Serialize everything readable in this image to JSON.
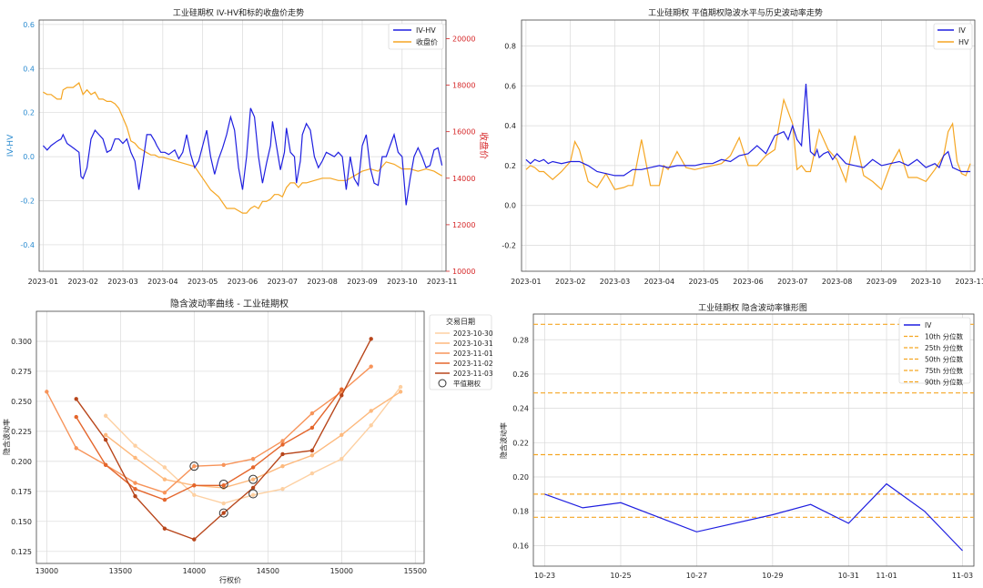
{
  "chart_data": [
    {
      "id": "c1",
      "type": "line",
      "title": "工业硅期权 IV-HV和标的收盘价走势",
      "xlabel": "",
      "ylabel": "IV-HV",
      "y2label": "收盘价",
      "legend_position": "top-right",
      "xticks": [
        "2023-01",
        "2023-02",
        "2023-03",
        "2023-04",
        "2023-05",
        "2023-06",
        "2023-07",
        "2023-08",
        "2023-09",
        "2023-10",
        "2023-11"
      ],
      "xlim": [
        -0.1,
        10.1
      ],
      "ylim": [
        -0.52,
        0.62
      ],
      "yticks": [
        -0.4,
        -0.2,
        0.0,
        0.2,
        0.4,
        0.6
      ],
      "y2lim": [
        10000,
        20800
      ],
      "y2ticks": [
        10000,
        12000,
        14000,
        16000,
        18000,
        20000
      ],
      "colors": {
        "iv_hv": "#1f1fe0",
        "close": "#f5a623",
        "left_axis": "#2a8bd0",
        "right_axis": "#d62728"
      },
      "series": [
        {
          "name": "IV-HV",
          "axis": "left",
          "x": [
            0.0,
            0.1,
            0.2,
            0.35,
            0.45,
            0.5,
            0.6,
            0.75,
            0.9,
            0.95,
            1.0,
            1.1,
            1.2,
            1.3,
            1.4,
            1.5,
            1.6,
            1.7,
            1.8,
            1.9,
            2.0,
            2.1,
            2.2,
            2.3,
            2.4,
            2.5,
            2.6,
            2.7,
            2.8,
            2.85,
            2.95,
            3.05,
            3.15,
            3.3,
            3.4,
            3.5,
            3.6,
            3.7,
            3.8,
            3.9,
            4.0,
            4.1,
            4.2,
            4.3,
            4.4,
            4.5,
            4.6,
            4.7,
            4.8,
            4.9,
            5.0,
            5.1,
            5.2,
            5.3,
            5.4,
            5.5,
            5.6,
            5.7,
            5.75,
            5.85,
            5.95,
            6.05,
            6.1,
            6.2,
            6.3,
            6.35,
            6.45,
            6.5,
            6.6,
            6.7,
            6.8,
            6.9,
            7.0,
            7.1,
            7.2,
            7.3,
            7.4,
            7.5,
            7.6,
            7.7,
            7.8,
            7.9,
            8.0,
            8.1,
            8.2,
            8.3,
            8.4,
            8.5,
            8.6,
            8.7,
            8.8,
            8.9,
            9.0,
            9.1,
            9.2,
            9.3,
            9.4,
            9.5,
            9.6,
            9.7,
            9.8,
            9.9,
            10.0
          ],
          "y": [
            0.05,
            0.03,
            0.05,
            0.07,
            0.08,
            0.1,
            0.06,
            0.04,
            0.02,
            -0.09,
            -0.1,
            -0.05,
            0.08,
            0.12,
            0.1,
            0.08,
            0.02,
            0.03,
            0.08,
            0.08,
            0.06,
            0.08,
            0.02,
            -0.02,
            -0.15,
            -0.03,
            0.1,
            0.1,
            0.07,
            0.05,
            0.02,
            0.02,
            0.01,
            0.03,
            -0.01,
            0.02,
            0.1,
            0.01,
            -0.05,
            -0.02,
            0.05,
            0.12,
            0.0,
            -0.08,
            -0.01,
            0.04,
            0.1,
            0.18,
            0.12,
            -0.05,
            -0.15,
            0.0,
            0.22,
            0.18,
            0.0,
            -0.12,
            -0.03,
            0.05,
            0.16,
            0.05,
            -0.06,
            0.02,
            0.13,
            0.02,
            0.0,
            -0.12,
            -0.02,
            0.1,
            0.15,
            0.12,
            0.0,
            -0.05,
            -0.02,
            0.02,
            0.01,
            0.0,
            0.02,
            0.0,
            -0.15,
            0.0,
            -0.1,
            -0.13,
            0.05,
            0.1,
            -0.05,
            -0.12,
            -0.13,
            0.0,
            0.0,
            0.05,
            0.1,
            0.02,
            0.0,
            -0.22,
            -0.1,
            0.0,
            0.04,
            0.0,
            -0.05,
            -0.04,
            0.03,
            0.04,
            -0.04
          ]
        },
        {
          "name": "收盘价",
          "axis": "right",
          "x": [
            0.0,
            0.1,
            0.2,
            0.35,
            0.45,
            0.5,
            0.6,
            0.75,
            0.9,
            1.0,
            1.1,
            1.2,
            1.3,
            1.4,
            1.5,
            1.6,
            1.7,
            1.8,
            1.9,
            2.0,
            2.1,
            2.2,
            2.3,
            2.4,
            2.5,
            2.6,
            2.7,
            2.8,
            2.9,
            3.0,
            3.2,
            3.4,
            3.6,
            3.8,
            4.0,
            4.2,
            4.4,
            4.6,
            4.8,
            5.0,
            5.1,
            5.2,
            5.3,
            5.4,
            5.5,
            5.6,
            5.7,
            5.8,
            5.9,
            6.0,
            6.1,
            6.2,
            6.3,
            6.4,
            6.5,
            6.6,
            6.8,
            7.0,
            7.2,
            7.4,
            7.6,
            7.8,
            8.0,
            8.2,
            8.4,
            8.5,
            8.6,
            8.8,
            9.0,
            9.2,
            9.4,
            9.6,
            9.8,
            9.9,
            10.0
          ],
          "y": [
            17700,
            17600,
            17600,
            17400,
            17400,
            17800,
            17900,
            17900,
            18100,
            17600,
            17800,
            17600,
            17700,
            17400,
            17400,
            17300,
            17300,
            17200,
            17000,
            16600,
            16200,
            15600,
            15500,
            15300,
            15200,
            15100,
            15000,
            15000,
            14900,
            14900,
            14800,
            14700,
            14600,
            14500,
            14000,
            13500,
            13200,
            12700,
            12700,
            12500,
            12500,
            12700,
            12800,
            12700,
            13000,
            13000,
            13100,
            13300,
            13300,
            13200,
            13600,
            13800,
            13800,
            13600,
            13800,
            13800,
            13900,
            14000,
            14000,
            13900,
            13900,
            14100,
            14300,
            14400,
            14300,
            14500,
            14700,
            14600,
            14400,
            14400,
            14300,
            14400,
            14300,
            14200,
            14100
          ]
        }
      ]
    },
    {
      "id": "c2",
      "type": "line",
      "title": "工业硅期权 平值期权隐波水平与历史波动率走势",
      "xlabel": "",
      "ylabel": "",
      "legend_position": "top-right",
      "xticks": [
        "2023-01",
        "2023-02",
        "2023-03",
        "2023-04",
        "2023-05",
        "2023-06",
        "2023-07",
        "2023-08",
        "2023-09",
        "2023-10",
        "2023-11"
      ],
      "xlim": [
        -0.1,
        10.1
      ],
      "ylim": [
        -0.33,
        0.93
      ],
      "yticks": [
        -0.2,
        0.0,
        0.2,
        0.4,
        0.6,
        0.8
      ],
      "colors": {
        "iv": "#1f1fe0",
        "hv": "#f5a623"
      },
      "series": [
        {
          "name": "IV",
          "x": [
            0.0,
            0.1,
            0.2,
            0.3,
            0.4,
            0.5,
            0.6,
            0.8,
            1.0,
            1.2,
            1.4,
            1.6,
            1.8,
            2.0,
            2.2,
            2.4,
            2.6,
            2.8,
            3.0,
            3.2,
            3.4,
            3.6,
            3.8,
            4.0,
            4.2,
            4.4,
            4.6,
            4.8,
            5.0,
            5.2,
            5.4,
            5.6,
            5.8,
            5.9,
            6.0,
            6.1,
            6.2,
            6.3,
            6.4,
            6.5,
            6.55,
            6.6,
            6.7,
            6.8,
            6.9,
            7.0,
            7.2,
            7.4,
            7.6,
            7.8,
            8.0,
            8.2,
            8.4,
            8.6,
            8.8,
            9.0,
            9.2,
            9.3,
            9.4,
            9.5,
            9.6,
            9.8,
            10.0
          ],
          "y": [
            0.23,
            0.21,
            0.23,
            0.22,
            0.23,
            0.21,
            0.22,
            0.21,
            0.22,
            0.22,
            0.2,
            0.17,
            0.16,
            0.15,
            0.15,
            0.18,
            0.18,
            0.19,
            0.2,
            0.19,
            0.2,
            0.2,
            0.2,
            0.21,
            0.21,
            0.23,
            0.22,
            0.25,
            0.26,
            0.3,
            0.26,
            0.35,
            0.37,
            0.33,
            0.4,
            0.33,
            0.3,
            0.61,
            0.27,
            0.25,
            0.28,
            0.24,
            0.26,
            0.27,
            0.23,
            0.26,
            0.21,
            0.2,
            0.19,
            0.23,
            0.2,
            0.21,
            0.22,
            0.2,
            0.23,
            0.19,
            0.21,
            0.19,
            0.25,
            0.27,
            0.19,
            0.17,
            0.17
          ]
        },
        {
          "name": "HV",
          "x": [
            0.0,
            0.1,
            0.2,
            0.3,
            0.4,
            0.5,
            0.6,
            0.8,
            1.0,
            1.1,
            1.2,
            1.4,
            1.6,
            1.8,
            2.0,
            2.2,
            2.3,
            2.4,
            2.6,
            2.8,
            3.0,
            3.1,
            3.2,
            3.4,
            3.6,
            3.8,
            4.0,
            4.2,
            4.4,
            4.6,
            4.8,
            5.0,
            5.2,
            5.4,
            5.6,
            5.8,
            6.0,
            6.1,
            6.2,
            6.3,
            6.4,
            6.6,
            6.8,
            7.0,
            7.2,
            7.4,
            7.6,
            7.8,
            8.0,
            8.2,
            8.4,
            8.6,
            8.8,
            9.0,
            9.2,
            9.4,
            9.5,
            9.6,
            9.7,
            9.8,
            9.9,
            10.0
          ],
          "y": [
            0.18,
            0.2,
            0.19,
            0.17,
            0.17,
            0.15,
            0.13,
            0.17,
            0.22,
            0.32,
            0.28,
            0.12,
            0.09,
            0.16,
            0.08,
            0.09,
            0.1,
            0.1,
            0.33,
            0.1,
            0.1,
            0.2,
            0.18,
            0.27,
            0.19,
            0.18,
            0.19,
            0.2,
            0.21,
            0.25,
            0.34,
            0.2,
            0.2,
            0.25,
            0.28,
            0.53,
            0.41,
            0.18,
            0.2,
            0.17,
            0.17,
            0.38,
            0.28,
            0.23,
            0.12,
            0.35,
            0.15,
            0.12,
            0.08,
            0.2,
            0.28,
            0.14,
            0.14,
            0.12,
            0.18,
            0.25,
            0.37,
            0.41,
            0.22,
            0.16,
            0.15,
            0.21
          ]
        }
      ]
    },
    {
      "id": "c3",
      "type": "line",
      "title": "隐含波动率曲线 - 工业硅期权",
      "xlabel": "行权价",
      "ylabel": "隐含波动率",
      "legend_title": "交易日期",
      "legend_position": "top-right",
      "xlim": [
        12930,
        15560
      ],
      "xticks": [
        13000,
        13500,
        14000,
        14500,
        15000,
        15500
      ],
      "ylim": [
        0.115,
        0.325
      ],
      "yticks": [
        0.125,
        0.15,
        0.175,
        0.2,
        0.225,
        0.25,
        0.275,
        0.3
      ],
      "atm_label": "平值期权",
      "series": [
        {
          "name": "2023-10-30",
          "color": "#fdd0a2",
          "x": [
            13400,
            13600,
            13800,
            14000,
            14200,
            14400,
            14600,
            14800,
            15000,
            15200,
            15400
          ],
          "y": [
            0.238,
            0.213,
            0.195,
            0.172,
            0.165,
            0.172,
            0.177,
            0.19,
            0.202,
            0.23,
            0.262
          ]
        },
        {
          "name": "2023-10-31",
          "color": "#fdb97d",
          "x": [
            13400,
            13600,
            13800,
            14000,
            14200,
            14400,
            14600,
            14800,
            15000,
            15200,
            15400
          ],
          "y": [
            0.222,
            0.203,
            0.185,
            0.18,
            0.178,
            0.185,
            0.196,
            0.205,
            0.222,
            0.242,
            0.258
          ]
        },
        {
          "name": "2023-11-01",
          "color": "#f7945a",
          "x": [
            13000,
            13200,
            13400,
            13600,
            13800,
            14000,
            14200,
            14400,
            14600,
            14800,
            15000,
            15200
          ],
          "y": [
            0.258,
            0.211,
            0.197,
            0.182,
            0.174,
            0.196,
            0.197,
            0.202,
            0.217,
            0.24,
            0.258,
            0.279
          ]
        },
        {
          "name": "2023-11-02",
          "color": "#e4662c",
          "x": [
            13200,
            13400,
            13600,
            13800,
            14000,
            14200,
            14400,
            14600,
            14800,
            15000
          ],
          "y": [
            0.237,
            0.197,
            0.177,
            0.168,
            0.18,
            0.18,
            0.195,
            0.214,
            0.228,
            0.26
          ]
        },
        {
          "name": "2023-11-03",
          "color": "#b8461b",
          "x": [
            13200,
            13400,
            13600,
            13800,
            14000,
            14200,
            14400,
            14600,
            14800,
            15000,
            15200
          ],
          "y": [
            0.252,
            0.218,
            0.171,
            0.144,
            0.135,
            0.157,
            0.178,
            0.206,
            0.209,
            0.255,
            0.302
          ]
        }
      ],
      "atm_points": [
        {
          "x": 14000,
          "y": 0.196
        },
        {
          "x": 14200,
          "y": 0.181
        },
        {
          "x": 14200,
          "y": 0.157
        },
        {
          "x": 14400,
          "y": 0.185
        },
        {
          "x": 14400,
          "y": 0.173
        }
      ]
    },
    {
      "id": "c4",
      "type": "line",
      "title": "工业硅期权 隐含波动率锥形图",
      "xlabel": "",
      "ylabel": "隐含波动率",
      "legend_position": "top-right",
      "xticks": [
        "10-23",
        "10-25",
        "10-27",
        "10-29",
        "10-31",
        "11-01",
        "11-03"
      ],
      "xtick_pos": [
        0,
        2,
        4,
        6,
        8,
        9,
        11
      ],
      "xlim": [
        -0.3,
        11.3
      ],
      "ylim": [
        0.148,
        0.295
      ],
      "yticks": [
        0.16,
        0.18,
        0.2,
        0.22,
        0.24,
        0.26,
        0.28
      ],
      "colors": {
        "iv": "#1f1fe0",
        "percentile": "#f5a623"
      },
      "series": [
        {
          "name": "IV",
          "x": [
            0,
            1,
            2,
            4,
            6,
            7,
            8,
            9,
            10,
            11
          ],
          "y": [
            0.19,
            0.182,
            0.185,
            0.168,
            0.178,
            0.184,
            0.173,
            0.196,
            0.18,
            0.157
          ]
        }
      ],
      "percentiles": [
        {
          "name": "10th 分位数",
          "value": 0.1765
        },
        {
          "name": "25th 分位数",
          "value": 0.19
        },
        {
          "name": "50th 分位数",
          "value": 0.213
        },
        {
          "name": "75th 分位数",
          "value": 0.249
        },
        {
          "name": "90th 分位数",
          "value": 0.289
        }
      ]
    }
  ]
}
